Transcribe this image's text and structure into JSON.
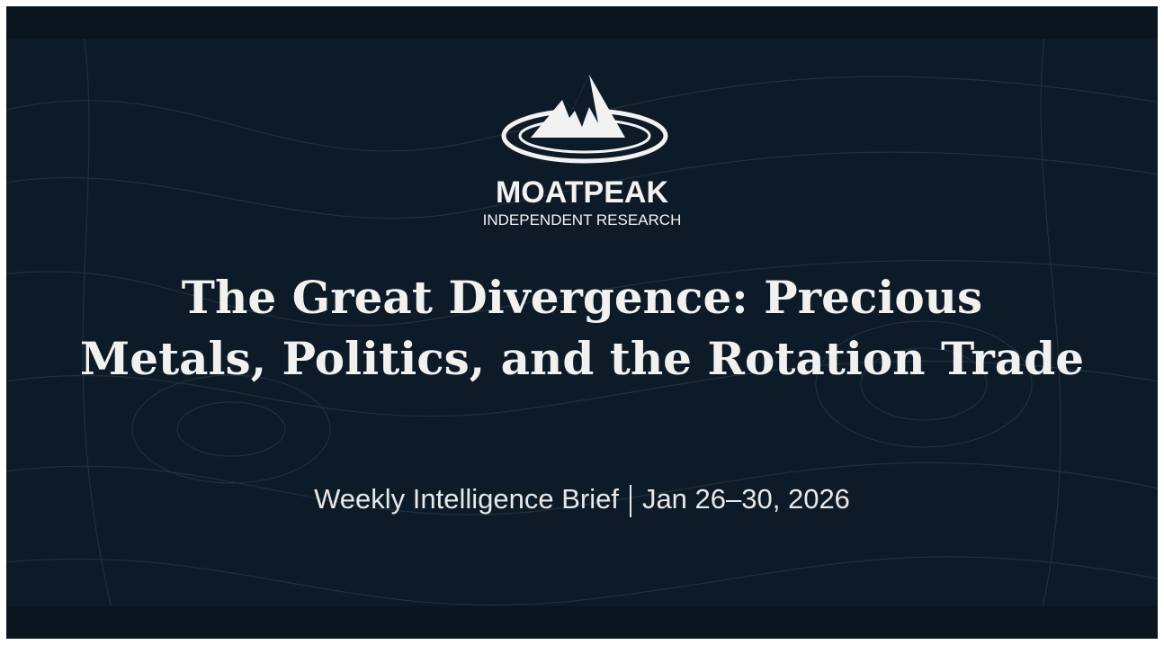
{
  "brand": {
    "name": "MOATPEAK",
    "tagline": "INDEPENDENT RESEARCH"
  },
  "title": {
    "line1": "The Great Divergence: Precious",
    "line2": "Metals, Politics, and the Rotation Trade"
  },
  "subtitle": {
    "series": "Weekly Intelligence Brief",
    "dates": "Jan 26–30, 2026"
  }
}
